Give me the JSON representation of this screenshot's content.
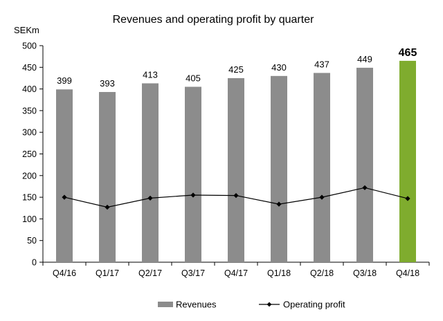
{
  "chart_data": {
    "type": "bar",
    "title": "Revenues and operating profit by quarter",
    "ylabel": "SEKm",
    "xlabel": "",
    "ylim": [
      0,
      500
    ],
    "yticks": [
      0,
      50,
      100,
      150,
      200,
      250,
      300,
      350,
      400,
      450,
      500
    ],
    "categories": [
      "Q4/16",
      "Q1/17",
      "Q2/17",
      "Q3/17",
      "Q4/17",
      "Q1/18",
      "Q2/18",
      "Q3/18",
      "Q4/18"
    ],
    "series": [
      {
        "name": "Revenues",
        "kind": "bar",
        "values": [
          399,
          393,
          413,
          405,
          425,
          430,
          437,
          449,
          465
        ],
        "color": "#8c8c8c",
        "highlight_index": 8,
        "highlight_color": "#7fac2e"
      },
      {
        "name": "Operating profit",
        "kind": "line",
        "values": [
          150,
          127,
          148,
          155,
          154,
          134,
          150,
          172,
          147
        ],
        "color": "#000000"
      }
    ],
    "grid": false,
    "legend": "bottom"
  }
}
